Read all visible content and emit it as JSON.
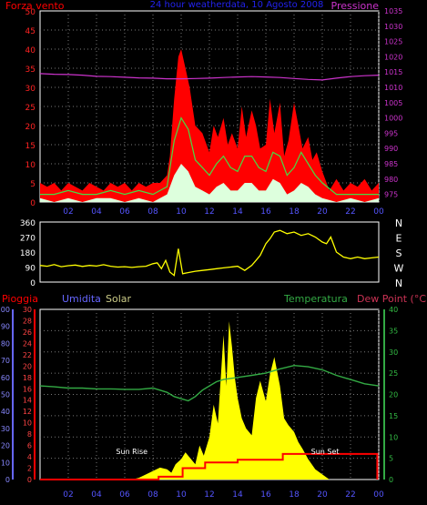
{
  "header": {
    "left_label": "Forza vento",
    "title": "24 hour weatherdata, 10 Agosto 2008",
    "right_label": "Pressione"
  },
  "colors": {
    "wind_gust": "#ff0000",
    "wind_avg": "#44dd44",
    "wind_calm": "#ddffdd",
    "pressure": "#cc33cc",
    "direction": "#ffff00",
    "temperature": "#33aa44",
    "solar": "#ffff00",
    "rain": "#ff0000",
    "dew_point": "#cc3355",
    "humidity_axis": "#6666ff",
    "rain_axis": "#ff0000",
    "temp_axis": "#33aa44",
    "grid": "#777777"
  },
  "chart_data": [
    {
      "type": "line",
      "name": "wind_pressure",
      "xlabel": "",
      "x_ticks": [
        "02",
        "04",
        "06",
        "08",
        "10",
        "12",
        "14",
        "16",
        "18",
        "20",
        "22",
        "00"
      ],
      "xlim": [
        0,
        24
      ],
      "left_axis": {
        "label": "Forza vento",
        "ticks": [
          0,
          5,
          10,
          15,
          20,
          25,
          30,
          35,
          40,
          45,
          50
        ],
        "ylim": [
          0,
          50
        ]
      },
      "right_axis": {
        "label": "Pressione",
        "ticks": [
          975,
          980,
          985,
          990,
          995,
          1000,
          1005,
          1010,
          1015,
          1020,
          1025,
          1030,
          1035
        ],
        "ylim": [
          972.5,
          1035
        ]
      },
      "series": [
        {
          "name": "gust",
          "axis": "left",
          "x": [
            0,
            0.5,
            1,
            1.5,
            2,
            2.5,
            3,
            3.5,
            4,
            4.5,
            5,
            5.5,
            6,
            6.5,
            7,
            7.5,
            8,
            8.5,
            9,
            9.2,
            9.5,
            9.8,
            10,
            10.3,
            10.6,
            11,
            11.5,
            12,
            12.3,
            12.6,
            13,
            13.3,
            13.6,
            14,
            14.3,
            14.6,
            15,
            15.3,
            15.6,
            16,
            16.3,
            16.6,
            17,
            17.3,
            17.6,
            18,
            18.3,
            18.6,
            19,
            19.3,
            19.6,
            20,
            20.5,
            21,
            21.5,
            22,
            22.5,
            23,
            23.5,
            24
          ],
          "values": [
            5,
            4,
            5,
            3,
            5,
            4,
            3,
            5,
            4,
            3,
            5,
            4,
            5,
            3,
            5,
            4,
            5,
            5,
            7,
            12,
            27,
            38,
            40,
            35,
            30,
            20,
            18,
            13,
            20,
            17,
            22,
            15,
            18,
            14,
            25,
            17,
            24,
            20,
            14,
            15,
            27,
            18,
            26,
            12,
            16,
            26,
            20,
            14,
            17,
            11,
            13,
            8,
            3,
            6,
            3,
            5,
            4,
            6,
            3,
            5
          ]
        },
        {
          "name": "average",
          "axis": "left",
          "x": [
            0,
            1,
            2,
            3,
            4,
            5,
            6,
            7,
            8,
            8.5,
            9,
            9.5,
            10,
            10.5,
            11,
            11.5,
            12,
            12.5,
            13,
            13.5,
            14,
            14.5,
            15,
            15.5,
            16,
            16.5,
            17,
            17.5,
            18,
            18.5,
            19,
            19.5,
            20,
            21,
            22,
            23,
            24
          ],
          "values": [
            2,
            2,
            3,
            2,
            2,
            3,
            2,
            3,
            2,
            3,
            4,
            16,
            22,
            19,
            11,
            9,
            7,
            10,
            12,
            9,
            8,
            12,
            12,
            9,
            8,
            13,
            12,
            7,
            9,
            13,
            10,
            7,
            5,
            2,
            2,
            2,
            2
          ]
        },
        {
          "name": "calm",
          "axis": "left",
          "x": [
            0,
            1,
            2,
            3,
            4,
            5,
            6,
            7,
            8,
            8.5,
            9,
            9.5,
            10,
            10.5,
            11,
            11.5,
            12,
            12.5,
            13,
            13.5,
            14,
            14.5,
            15,
            15.5,
            16,
            16.5,
            17,
            17.5,
            18,
            18.5,
            19,
            19.5,
            20,
            21,
            22,
            23,
            24
          ],
          "values": [
            1,
            0,
            1,
            0,
            1,
            1,
            0,
            1,
            0,
            1,
            2,
            7,
            10,
            8,
            4,
            3,
            2,
            4,
            5,
            3,
            3,
            5,
            5,
            3,
            3,
            6,
            5,
            2,
            3,
            5,
            4,
            2,
            1,
            0,
            1,
            0,
            1
          ]
        },
        {
          "name": "pressure",
          "axis": "right",
          "x": [
            0,
            1,
            2,
            3,
            4,
            5,
            6,
            7,
            8,
            9,
            10,
            11,
            12,
            13,
            14,
            15,
            16,
            17,
            18,
            19,
            20,
            21,
            22,
            23,
            24
          ],
          "values": [
            1014.5,
            1014.3,
            1014.2,
            1014,
            1013.6,
            1013.5,
            1013.3,
            1013.1,
            1013,
            1012.8,
            1012.8,
            1012.9,
            1013,
            1013.2,
            1013.4,
            1013.5,
            1013.4,
            1013.2,
            1012.9,
            1012.6,
            1012.4,
            1013,
            1013.5,
            1013.8,
            1014
          ]
        }
      ]
    },
    {
      "type": "line",
      "name": "wind_direction",
      "xlim": [
        0,
        24
      ],
      "ylim": [
        0,
        360
      ],
      "left_ticks": [
        0,
        90,
        180,
        270,
        360
      ],
      "right_labels": [
        "N",
        "W",
        "S",
        "E",
        "N"
      ],
      "series": [
        {
          "name": "direction",
          "x": [
            0,
            0.5,
            1,
            1.5,
            2,
            2.5,
            3,
            3.5,
            4,
            4.5,
            5,
            5.5,
            6,
            6.5,
            7,
            7.5,
            8,
            8.3,
            8.6,
            8.9,
            9.2,
            9.5,
            9.8,
            10.1,
            10.4,
            10.7,
            11,
            11.5,
            12,
            12.5,
            13,
            13.5,
            14,
            14.5,
            15,
            15.3,
            15.6,
            16,
            16.3,
            16.6,
            17,
            17.5,
            18,
            18.5,
            19,
            19.5,
            20,
            20.3,
            20.6,
            21,
            21.5,
            22,
            22.5,
            23,
            23.5,
            24
          ],
          "values": [
            100,
            95,
            105,
            92,
            98,
            102,
            94,
            100,
            96,
            104,
            95,
            90,
            92,
            88,
            92,
            95,
            110,
            115,
            80,
            130,
            60,
            40,
            200,
            50,
            55,
            60,
            65,
            70,
            75,
            80,
            85,
            90,
            95,
            70,
            100,
            130,
            160,
            230,
            260,
            300,
            310,
            290,
            300,
            280,
            290,
            270,
            240,
            230,
            270,
            180,
            150,
            140,
            150,
            140,
            145,
            150
          ]
        }
      ]
    },
    {
      "type": "line",
      "name": "rain_temp_solar",
      "header_labels": {
        "rain": "Pioggia",
        "humidity": "Umidita",
        "solar": "Solar",
        "temperature": "Temperatura",
        "dew_point": "Dew Point (°C)"
      },
      "x_ticks": [
        "02",
        "04",
        "06",
        "08",
        "10",
        "12",
        "14",
        "16",
        "18",
        "20",
        "22",
        "00"
      ],
      "xlim": [
        0,
        24
      ],
      "humidity_axis": {
        "ticks": [
          0,
          10,
          20,
          30,
          40,
          50,
          60,
          70,
          80,
          90,
          100
        ],
        "ylim": [
          0,
          100
        ]
      },
      "rain_axis": {
        "ticks": [
          0,
          2,
          4,
          6,
          8,
          10,
          12,
          14,
          16,
          18,
          20,
          22,
          24,
          26,
          28,
          30
        ],
        "ylim": [
          0,
          30
        ]
      },
      "temp_axis": {
        "ticks": [
          0,
          5,
          10,
          15,
          20,
          25,
          30,
          35,
          40
        ],
        "ylim": [
          0,
          40
        ]
      },
      "annotations": [
        {
          "label": "Sun Rise",
          "x": 6.5
        },
        {
          "label": "Sun Set",
          "x": 20.2
        }
      ],
      "series": [
        {
          "name": "temperature",
          "axis": "temp",
          "x": [
            0,
            1,
            2,
            3,
            4,
            5,
            6,
            7,
            8,
            8.5,
            9,
            9.5,
            10,
            10.5,
            11,
            11.5,
            12,
            12.5,
            13,
            14,
            15,
            16,
            17,
            18,
            19,
            20,
            21,
            22,
            23,
            24
          ],
          "values": [
            22,
            21.8,
            21.5,
            21.5,
            21.3,
            21.3,
            21.2,
            21.2,
            21.5,
            21,
            20.5,
            19.5,
            19,
            18.5,
            19.5,
            21,
            22,
            23,
            23.5,
            24,
            24.5,
            25,
            26,
            26.8,
            26.5,
            25.8,
            24.5,
            23.5,
            22.5,
            22
          ]
        },
        {
          "name": "solar",
          "axis": "humidity",
          "x": [
            6.5,
            7,
            7.5,
            8,
            8.5,
            9,
            9.3,
            9.6,
            10,
            10.3,
            10.6,
            11,
            11.3,
            11.6,
            12,
            12.3,
            12.6,
            13,
            13.2,
            13.4,
            13.6,
            13.8,
            14,
            14.3,
            14.6,
            15,
            15.3,
            15.6,
            16,
            16.3,
            16.6,
            17,
            17.3,
            17.6,
            18,
            18.3,
            18.6,
            19,
            19.5,
            20,
            20.5
          ],
          "values": [
            0,
            1,
            3,
            5,
            7,
            6,
            4,
            9,
            12,
            16,
            13,
            9,
            20,
            14,
            25,
            44,
            33,
            85,
            55,
            93,
            78,
            60,
            48,
            36,
            30,
            26,
            48,
            58,
            46,
            62,
            72,
            55,
            36,
            32,
            28,
            22,
            18,
            12,
            6,
            3,
            0
          ]
        },
        {
          "name": "rain",
          "axis": "rain",
          "x": [
            0,
            8.4,
            8.4,
            10.1,
            10.1,
            11.7,
            11.7,
            14,
            14,
            17.2,
            17.2,
            23.9,
            23.9
          ],
          "values": [
            0,
            0,
            0.5,
            0.5,
            2,
            2,
            3,
            3,
            3.5,
            3.5,
            4.5,
            4.5,
            0
          ]
        }
      ]
    }
  ]
}
